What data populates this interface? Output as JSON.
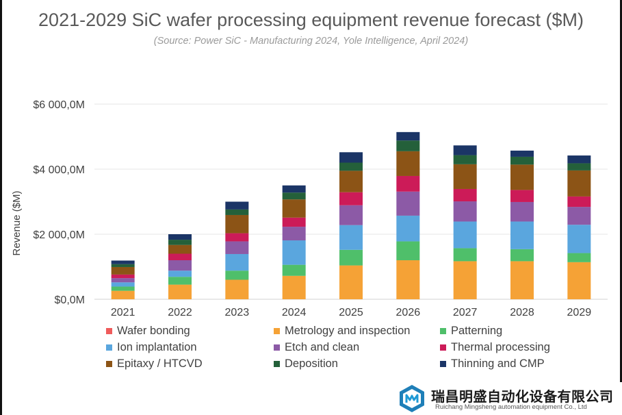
{
  "title": "2021-2029 SiC wafer processing equipment revenue forecast ($M)",
  "subtitle": "(Source: Power SiC - Manufacturing 2024, Yole Intelligence, April 2024)",
  "chart_data": {
    "type": "bar",
    "stacked": true,
    "title": "2021-2029 SiC wafer processing equipment revenue forecast ($M)",
    "xlabel": "",
    "ylabel": "Revenue ($M)",
    "ylim": [
      0,
      6000
    ],
    "y_ticks": [
      0,
      2000,
      4000,
      6000
    ],
    "y_tick_labels": [
      "$0,0M",
      "$2 000,0M",
      "$4 000,0M",
      "$6 000,0M"
    ],
    "grid": true,
    "legend_position": "bottom",
    "categories": [
      "2021",
      "2022",
      "2023",
      "2024",
      "2025",
      "2026",
      "2027",
      "2028",
      "2029"
    ],
    "series": [
      {
        "name": "Wafer bonding",
        "color": "#ef5b5b",
        "values": [
          0,
          0,
          0,
          0,
          0,
          0,
          0,
          0,
          0
        ]
      },
      {
        "name": "Metrology and inspection",
        "color": "#f5a236",
        "values": [
          260,
          450,
          600,
          720,
          1040,
          1200,
          1170,
          1170,
          1140
        ]
      },
      {
        "name": "Patterning",
        "color": "#4fbf6a",
        "values": [
          130,
          240,
          280,
          340,
          480,
          580,
          400,
          370,
          280
        ]
      },
      {
        "name": "Ion implantation",
        "color": "#5aa6de",
        "values": [
          130,
          190,
          510,
          750,
          760,
          790,
          820,
          850,
          870
        ]
      },
      {
        "name": "Etch and clean",
        "color": "#8c5aa6",
        "values": [
          130,
          320,
          390,
          420,
          610,
          740,
          620,
          600,
          550
        ]
      },
      {
        "name": "Thermal processing",
        "color": "#cc1b58",
        "values": [
          110,
          200,
          250,
          280,
          400,
          480,
          380,
          370,
          320
        ]
      },
      {
        "name": "Epitaxy / HTCVD",
        "color": "#8c5416",
        "values": [
          230,
          270,
          560,
          560,
          660,
          760,
          760,
          780,
          800
        ]
      },
      {
        "name": "Deposition",
        "color": "#24603a",
        "values": [
          90,
          160,
          170,
          210,
          250,
          330,
          280,
          240,
          220
        ]
      },
      {
        "name": "Thinning and CMP",
        "color": "#1b3566",
        "values": [
          110,
          170,
          240,
          220,
          320,
          260,
          300,
          190,
          240
        ]
      }
    ]
  },
  "logo": {
    "text_zh": "瑞昌明盛自动化设备有限公司",
    "text_en": "Ruichang Mingsheng automation equipment Co., Ltd"
  }
}
